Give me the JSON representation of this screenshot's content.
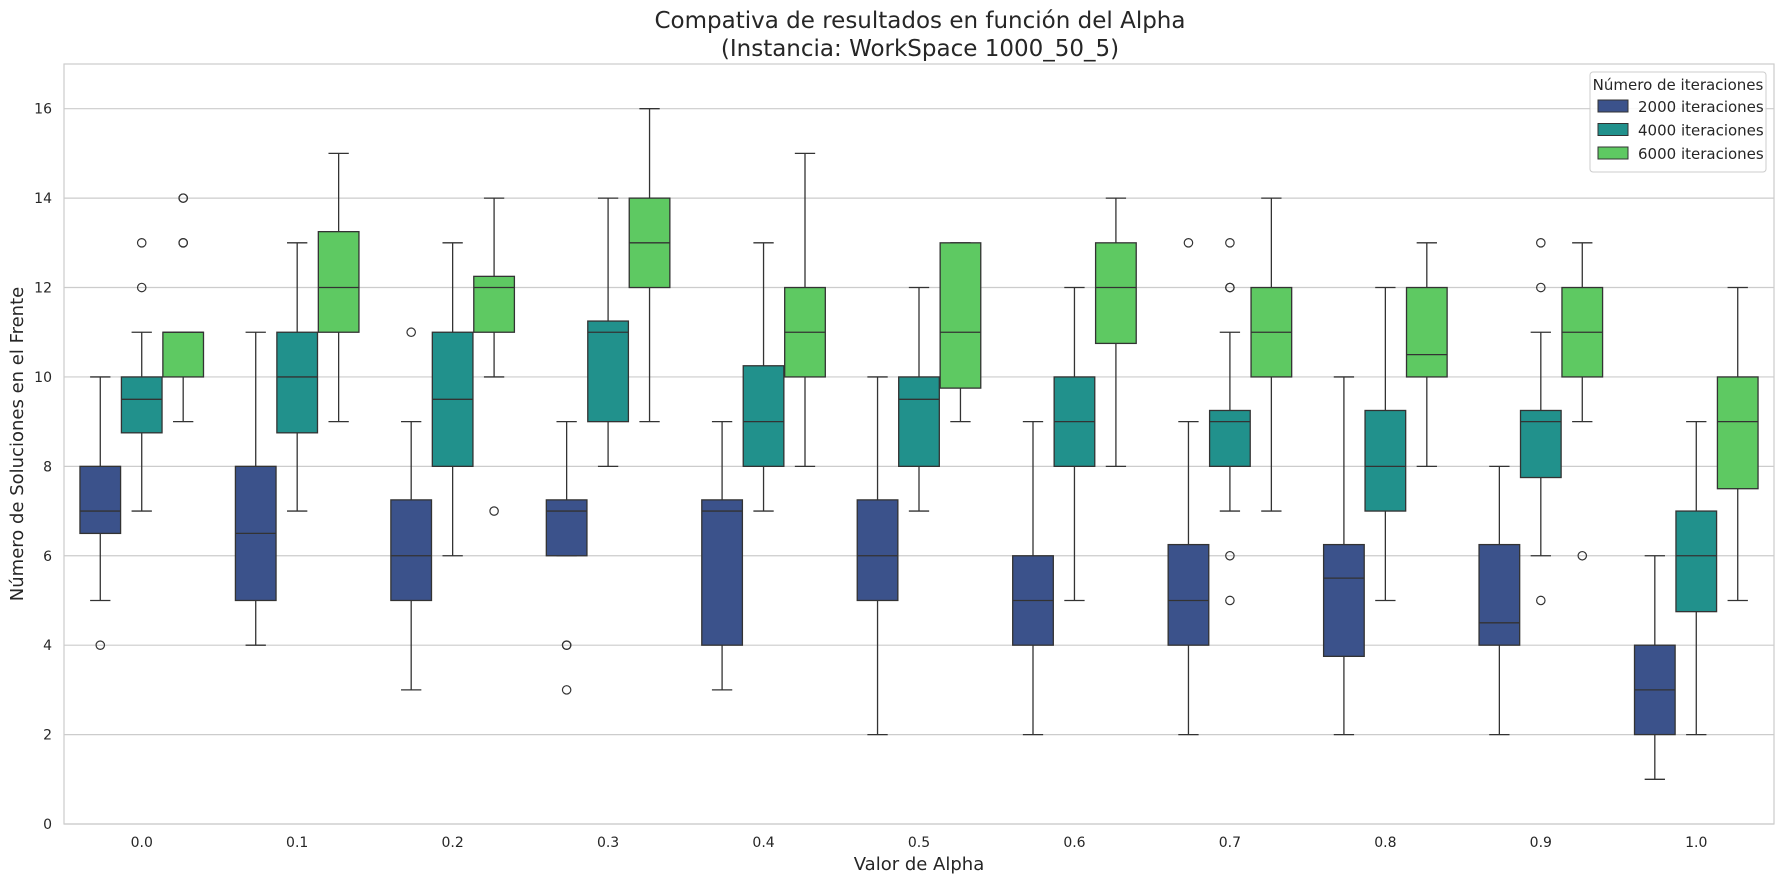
{
  "chart_data": {
    "type": "box",
    "title": "Compativa de resultados en función del Alpha",
    "subtitle": "(Instancia: WorkSpace 1000_50_5)",
    "xlabel": "Valor de Alpha",
    "ylabel": "Número de Soluciones en el Frente",
    "categories": [
      "0.0",
      "0.1",
      "0.2",
      "0.3",
      "0.4",
      "0.5",
      "0.6",
      "0.7",
      "0.8",
      "0.9",
      "1.0"
    ],
    "ylim": [
      0,
      17
    ],
    "yticks": [
      0,
      2,
      4,
      6,
      8,
      10,
      12,
      14,
      16
    ],
    "grid": "horizontal",
    "legend": {
      "title": "Número de iteraciones",
      "placement": "top-right"
    },
    "series": [
      {
        "name": "2000 iteraciones",
        "color": "#3b528b",
        "boxes": [
          {
            "whislo": 5,
            "q1": 6.5,
            "med": 7,
            "q3": 8,
            "whishi": 10,
            "fliers": [
              4
            ]
          },
          {
            "whislo": 4,
            "q1": 5,
            "med": 6.5,
            "q3": 8,
            "whishi": 11,
            "fliers": []
          },
          {
            "whislo": 3,
            "q1": 5,
            "med": 6,
            "q3": 7.25,
            "whishi": 9,
            "fliers": [
              11
            ]
          },
          {
            "whislo": 6,
            "q1": 6,
            "med": 7,
            "q3": 7.25,
            "whishi": 9,
            "fliers": [
              4,
              4,
              3
            ]
          },
          {
            "whislo": 3,
            "q1": 4,
            "med": 7,
            "q3": 7.25,
            "whishi": 9,
            "fliers": []
          },
          {
            "whislo": 2,
            "q1": 5,
            "med": 6,
            "q3": 7.25,
            "whishi": 10,
            "fliers": []
          },
          {
            "whislo": 2,
            "q1": 4,
            "med": 5,
            "q3": 6,
            "whishi": 9,
            "fliers": []
          },
          {
            "whislo": 2,
            "q1": 4,
            "med": 5,
            "q3": 6.25,
            "whishi": 9,
            "fliers": [
              13
            ]
          },
          {
            "whislo": 2,
            "q1": 3.75,
            "med": 5.5,
            "q3": 6.25,
            "whishi": 10,
            "fliers": []
          },
          {
            "whislo": 2,
            "q1": 4,
            "med": 4.5,
            "q3": 6.25,
            "whishi": 8,
            "fliers": []
          },
          {
            "whislo": 1,
            "q1": 2,
            "med": 3,
            "q3": 4,
            "whishi": 6,
            "fliers": []
          }
        ]
      },
      {
        "name": "4000 iteraciones",
        "color": "#21918c",
        "boxes": [
          {
            "whislo": 7,
            "q1": 8.75,
            "med": 9.5,
            "q3": 10,
            "whishi": 11,
            "fliers": [
              13,
              12
            ]
          },
          {
            "whislo": 7,
            "q1": 8.75,
            "med": 10,
            "q3": 11,
            "whishi": 13,
            "fliers": []
          },
          {
            "whislo": 6,
            "q1": 8,
            "med": 9.5,
            "q3": 11,
            "whishi": 13,
            "fliers": []
          },
          {
            "whislo": 8,
            "q1": 9,
            "med": 11,
            "q3": 11.25,
            "whishi": 14,
            "fliers": []
          },
          {
            "whislo": 7,
            "q1": 8,
            "med": 9,
            "q3": 10.25,
            "whishi": 13,
            "fliers": []
          },
          {
            "whislo": 7,
            "q1": 8,
            "med": 9.5,
            "q3": 10,
            "whishi": 12,
            "fliers": []
          },
          {
            "whislo": 5,
            "q1": 8,
            "med": 9,
            "q3": 10,
            "whishi": 12,
            "fliers": []
          },
          {
            "whislo": 7,
            "q1": 8,
            "med": 9,
            "q3": 9.25,
            "whishi": 11,
            "fliers": [
              13,
              12,
              12,
              6,
              5
            ]
          },
          {
            "whislo": 5,
            "q1": 7,
            "med": 8,
            "q3": 9.25,
            "whishi": 12,
            "fliers": []
          },
          {
            "whislo": 6,
            "q1": 7.75,
            "med": 9,
            "q3": 9.25,
            "whishi": 11,
            "fliers": [
              13,
              12,
              5
            ]
          },
          {
            "whislo": 2,
            "q1": 4.75,
            "med": 6,
            "q3": 7,
            "whishi": 9,
            "fliers": []
          }
        ]
      },
      {
        "name": "6000 iteraciones",
        "color": "#5ec962",
        "boxes": [
          {
            "whislo": 9,
            "q1": 10,
            "med": 11,
            "q3": 11,
            "whishi": 11,
            "fliers": [
              14,
              14,
              13,
              13
            ]
          },
          {
            "whislo": 9,
            "q1": 11,
            "med": 12,
            "q3": 13.25,
            "whishi": 15,
            "fliers": []
          },
          {
            "whislo": 10,
            "q1": 11,
            "med": 12,
            "q3": 12.25,
            "whishi": 14,
            "fliers": [
              7
            ]
          },
          {
            "whislo": 9,
            "q1": 12,
            "med": 13,
            "q3": 14,
            "whishi": 16,
            "fliers": []
          },
          {
            "whislo": 8,
            "q1": 10,
            "med": 11,
            "q3": 12,
            "whishi": 15,
            "fliers": []
          },
          {
            "whislo": 9,
            "q1": 9.75,
            "med": 11,
            "q3": 13,
            "whishi": 13,
            "fliers": []
          },
          {
            "whislo": 8,
            "q1": 10.75,
            "med": 12,
            "q3": 13,
            "whishi": 14,
            "fliers": []
          },
          {
            "whislo": 7,
            "q1": 10,
            "med": 11,
            "q3": 12,
            "whishi": 14,
            "fliers": []
          },
          {
            "whislo": 8,
            "q1": 10,
            "med": 10.5,
            "q3": 12,
            "whishi": 13,
            "fliers": []
          },
          {
            "whislo": 9,
            "q1": 10,
            "med": 11,
            "q3": 12,
            "whishi": 13,
            "fliers": [
              6
            ]
          },
          {
            "whislo": 5,
            "q1": 7.5,
            "med": 9,
            "q3": 10,
            "whishi": 12,
            "fliers": []
          }
        ]
      }
    ]
  }
}
